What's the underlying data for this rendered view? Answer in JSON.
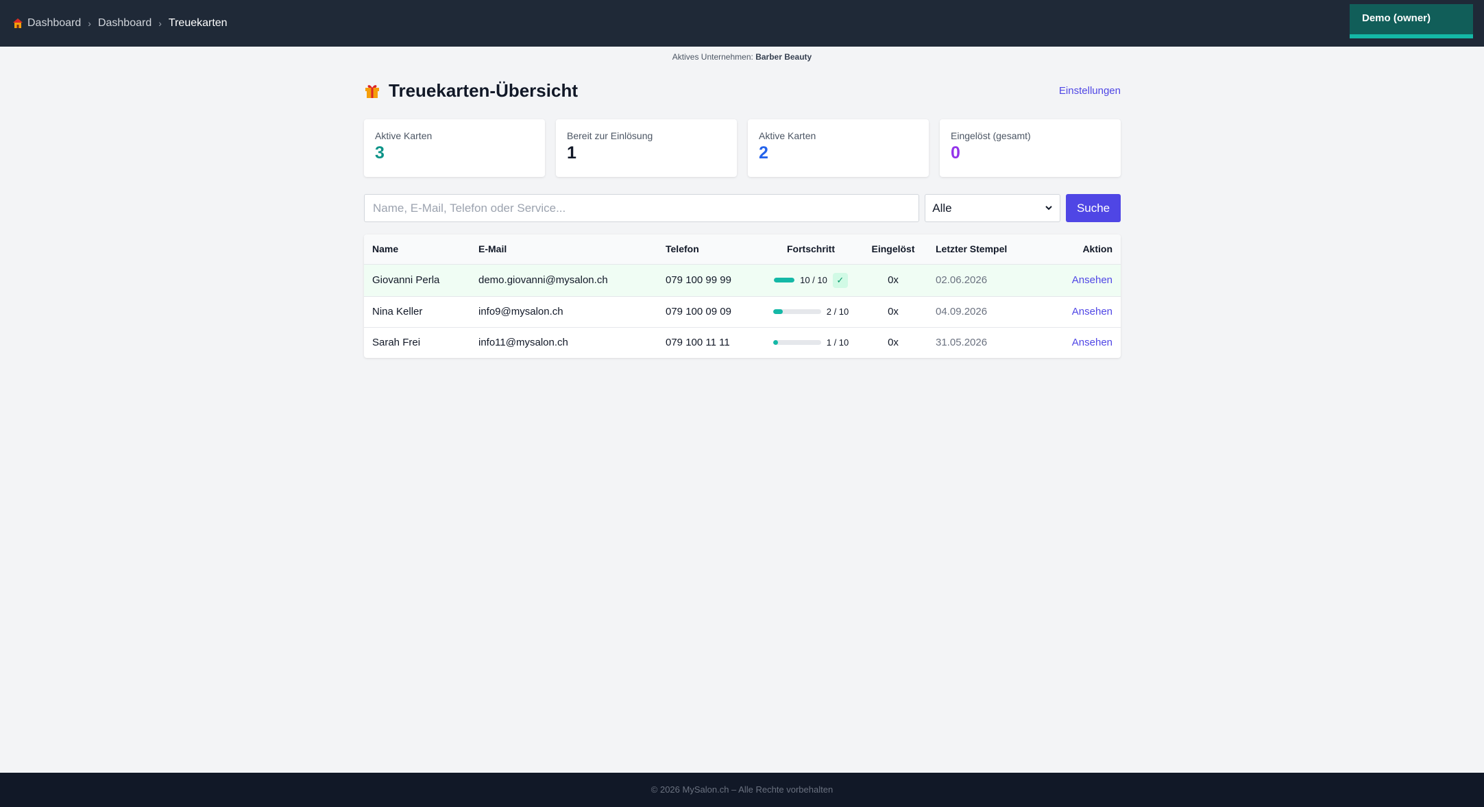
{
  "breadcrumb": {
    "items": [
      "Dashboard",
      "Dashboard"
    ],
    "current": "Treuekarten",
    "separator": "›"
  },
  "user": {
    "label": "Demo (owner)"
  },
  "company": {
    "prefix": "Aktives Unternehmen:",
    "name": "Barber Beauty"
  },
  "page": {
    "title": "Treuekarten-Übersicht",
    "settings_link": "Einstellungen"
  },
  "stats": [
    {
      "label": "Aktive Karten",
      "value": "3",
      "color": "#0d9488"
    },
    {
      "label": "Bereit zur Einlösung",
      "value": "1",
      "color": "#111827"
    },
    {
      "label": "Aktive Karten",
      "value": "2",
      "color": "#2563eb"
    },
    {
      "label": "Eingelöst (gesamt)",
      "value": "0",
      "color": "#9333ea"
    }
  ],
  "search": {
    "placeholder": "Name, E-Mail, Telefon oder Service...",
    "filter_value": "Alle",
    "button_label": "Suche"
  },
  "table": {
    "headers": {
      "name": "Name",
      "email": "E-Mail",
      "phone": "Telefon",
      "progress": "Fortschritt",
      "redeemed": "Eingelöst",
      "last_stamp": "Letzter Stempel",
      "action": "Aktion"
    },
    "rows": [
      {
        "name": "Giovanni Perla",
        "email": "demo.giovanni@mysalon.ch",
        "phone": "079 100 99 99",
        "progress_text": "10 / 10",
        "progress": 1.0,
        "complete": true,
        "redeemed": "0x",
        "last_stamp": "02.06.2026",
        "action": "Ansehen"
      },
      {
        "name": "Nina Keller",
        "email": "info9@mysalon.ch",
        "phone": "079 100 09 09",
        "progress_text": "2 / 10",
        "progress": 0.2,
        "complete": false,
        "redeemed": "0x",
        "last_stamp": "04.09.2026",
        "action": "Ansehen"
      },
      {
        "name": "Sarah Frei",
        "email": "info11@mysalon.ch",
        "phone": "079 100 11 11",
        "progress_text": "1 / 10",
        "progress": 0.1,
        "complete": false,
        "redeemed": "0x",
        "last_stamp": "31.05.2026",
        "action": "Ansehen"
      }
    ]
  },
  "check_mark": "✓",
  "footer": {
    "text": "© 2026 MySalon.ch – Alle Rechte vorbehalten"
  },
  "icons": {
    "home": "house-icon",
    "gift": "gift-icon",
    "dropdown": "chevron-down-icon"
  }
}
